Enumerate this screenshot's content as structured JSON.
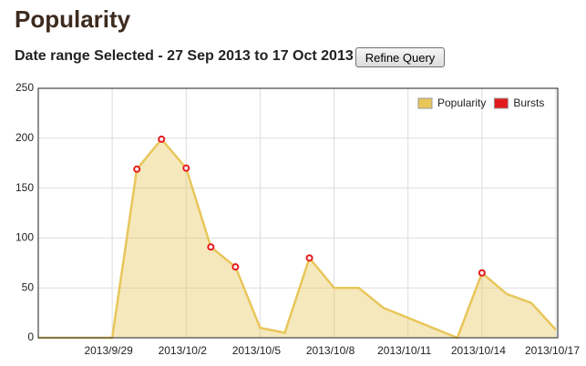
{
  "header": {
    "title": "Popularity",
    "date_range": "Date range Selected - 27 Sep 2013 to 17 Oct 2013",
    "button": "Refine Query"
  },
  "chart_data": {
    "type": "area",
    "categories": [
      null,
      null,
      null,
      "2013/9/29",
      null,
      null,
      "2013/10/2",
      null,
      null,
      "2013/10/5",
      null,
      null,
      "2013/10/8",
      null,
      null,
      "2013/10/11",
      null,
      null,
      "2013/10/14",
      null,
      null,
      "2013/10/17"
    ],
    "series": [
      {
        "name": "Popularity",
        "color": "#e8c65a",
        "values": [
          0,
          0,
          0,
          0,
          169,
          199,
          170,
          91,
          71,
          10,
          5,
          80,
          50,
          50,
          30,
          20,
          10,
          0,
          65,
          44,
          35,
          8
        ]
      },
      {
        "name": "Bursts",
        "color": "#e31a1c",
        "values": [
          null,
          null,
          null,
          null,
          169,
          199,
          170,
          91,
          71,
          null,
          null,
          80,
          null,
          null,
          null,
          null,
          null,
          null,
          65,
          null,
          null,
          null
        ]
      }
    ],
    "ylim": [
      0,
      250
    ],
    "yticks": [
      0,
      50,
      100,
      150,
      200,
      250
    ],
    "grid": true,
    "legend": "top-right"
  }
}
